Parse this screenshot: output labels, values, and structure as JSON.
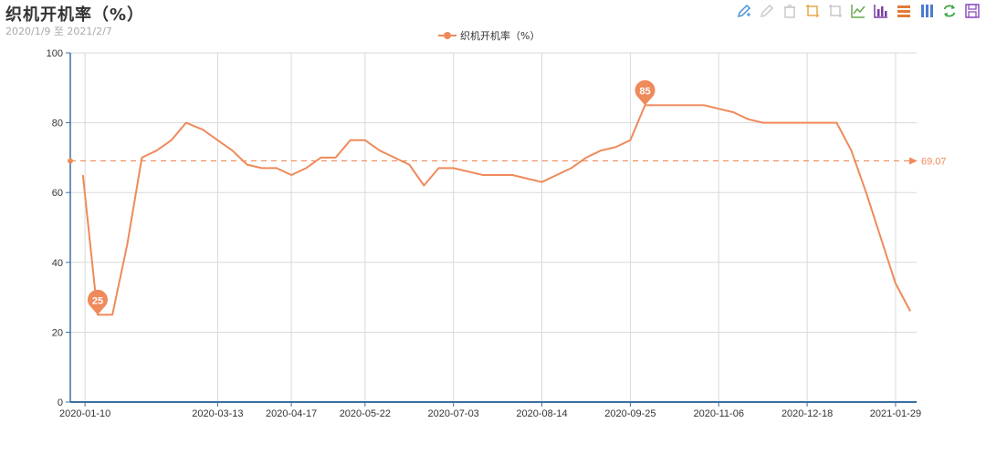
{
  "header": {
    "title": "织机开机率（%）",
    "subtitle": "2020/1/9 至 2021/2/7"
  },
  "toolbox": [
    {
      "name": "mark-pen-icon",
      "color": "#4a90d9"
    },
    {
      "name": "eraser-pen-icon",
      "color": "#c8c8c8"
    },
    {
      "name": "clear-icon",
      "color": "#c8c8c8"
    },
    {
      "name": "zoom-icon",
      "color": "#e8a54b"
    },
    {
      "name": "zoom-reset-icon",
      "color": "#c8c8c8"
    },
    {
      "name": "line-chart-icon",
      "color": "#6aa84f"
    },
    {
      "name": "bar-chart-icon",
      "color": "#7b3fa0"
    },
    {
      "name": "stack-icon",
      "color": "#e07b39"
    },
    {
      "name": "tiled-icon",
      "color": "#4a7bd0"
    },
    {
      "name": "refresh-icon",
      "color": "#3aa845"
    },
    {
      "name": "save-image-icon",
      "color": "#8e4fc2"
    }
  ],
  "chart_data": {
    "type": "line",
    "title": "织机开机率（%）",
    "subtitle": "2020/1/9 至 2021/2/7",
    "xlabel": "",
    "ylabel": "",
    "ylim": [
      0,
      100
    ],
    "yticks": [
      0,
      20,
      40,
      60,
      80,
      100
    ],
    "xlim": [
      "2020-01-03",
      "2021-02-08"
    ],
    "xticks": [
      "2020-01-10",
      "2020-03-13",
      "2020-04-17",
      "2020-05-22",
      "2020-07-03",
      "2020-08-14",
      "2020-09-25",
      "2020-11-06",
      "2020-12-18",
      "2021-01-29"
    ],
    "grid": true,
    "legend": "top-center",
    "color": "#ef8a5b",
    "series": [
      {
        "name": "织机开机率（%）",
        "points": [
          [
            "2020-01-09",
            65
          ],
          [
            "2020-01-16",
            25
          ],
          [
            "2020-01-23",
            25
          ],
          [
            "2020-01-30",
            45
          ],
          [
            "2020-02-06",
            70
          ],
          [
            "2020-02-13",
            72
          ],
          [
            "2020-02-20",
            75
          ],
          [
            "2020-02-27",
            80
          ],
          [
            "2020-03-06",
            78
          ],
          [
            "2020-03-13",
            75
          ],
          [
            "2020-03-20",
            72
          ],
          [
            "2020-03-27",
            68
          ],
          [
            "2020-04-03",
            67
          ],
          [
            "2020-04-10",
            67
          ],
          [
            "2020-04-17",
            65
          ],
          [
            "2020-04-24",
            67
          ],
          [
            "2020-05-01",
            70
          ],
          [
            "2020-05-08",
            70
          ],
          [
            "2020-05-15",
            75
          ],
          [
            "2020-05-22",
            75
          ],
          [
            "2020-05-29",
            72
          ],
          [
            "2020-06-05",
            70
          ],
          [
            "2020-06-12",
            68
          ],
          [
            "2020-06-19",
            62
          ],
          [
            "2020-06-26",
            67
          ],
          [
            "2020-07-03",
            67
          ],
          [
            "2020-07-10",
            66
          ],
          [
            "2020-07-17",
            65
          ],
          [
            "2020-07-24",
            65
          ],
          [
            "2020-07-31",
            65
          ],
          [
            "2020-08-07",
            64
          ],
          [
            "2020-08-14",
            63
          ],
          [
            "2020-08-21",
            65
          ],
          [
            "2020-08-28",
            67
          ],
          [
            "2020-09-04",
            70
          ],
          [
            "2020-09-11",
            72
          ],
          [
            "2020-09-18",
            73
          ],
          [
            "2020-09-25",
            75
          ],
          [
            "2020-10-02",
            85
          ],
          [
            "2020-10-09",
            85
          ],
          [
            "2020-10-16",
            85
          ],
          [
            "2020-10-23",
            85
          ],
          [
            "2020-10-30",
            85
          ],
          [
            "2020-11-06",
            84
          ],
          [
            "2020-11-13",
            83
          ],
          [
            "2020-11-20",
            81
          ],
          [
            "2020-11-27",
            80
          ],
          [
            "2020-12-04",
            80
          ],
          [
            "2020-12-11",
            80
          ],
          [
            "2020-12-18",
            80
          ],
          [
            "2020-12-25",
            80
          ],
          [
            "2021-01-01",
            80
          ],
          [
            "2021-01-08",
            72
          ],
          [
            "2021-01-15",
            60
          ],
          [
            "2021-01-22",
            47
          ],
          [
            "2021-01-29",
            34
          ],
          [
            "2021-02-05",
            26
          ]
        ]
      }
    ],
    "mark_points": [
      {
        "label": "25",
        "date": "2020-01-16",
        "value": 25
      },
      {
        "label": "85",
        "date": "2020-10-02",
        "value": 85
      }
    ],
    "mark_line": {
      "label": "69.07",
      "value": 69.07
    }
  }
}
